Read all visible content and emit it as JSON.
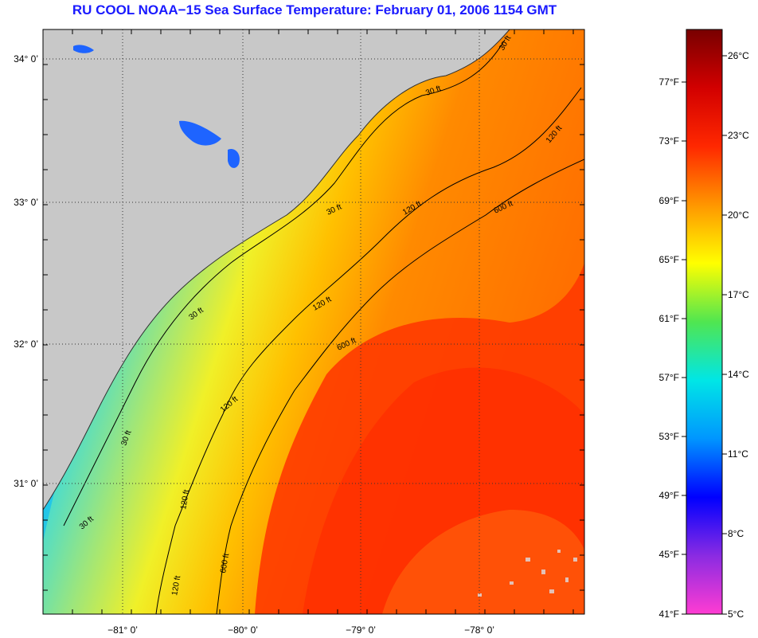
{
  "title": "RU COOL  NOAA−15  Sea Surface Temperature:  February 01, 2006 1154 GMT",
  "map": {
    "lat_ticks": [
      "34° 0’",
      "33° 0’",
      "32° 0’",
      "31° 0’"
    ],
    "lon_ticks": [
      "−81° 0’",
      "−80° 0’",
      "−79° 0’",
      "−78° 0’"
    ],
    "contour_labels": [
      "30 ft",
      "30 ft",
      "30 ft",
      "30 ft",
      "30 ft",
      "30 ft",
      "120 ft",
      "120 ft",
      "120 ft",
      "120 ft",
      "120 ft",
      "120 ft",
      "600 ft",
      "600 ft",
      "600 ft"
    ],
    "colors": {
      "land": "#c8c8c8",
      "grid": "#333333",
      "contour": "#000000"
    }
  },
  "colorbar": {
    "fahrenheit": [
      "77°F",
      "73°F",
      "69°F",
      "65°F",
      "61°F",
      "57°F",
      "53°F",
      "49°F",
      "45°F",
      "41°F"
    ],
    "celsius": [
      "26°C",
      "23°C",
      "20°C",
      "17°C",
      "14°C",
      "11°C",
      "8°C",
      "5°C"
    ],
    "colors": [
      "#ff3cd2",
      "#8a2be2",
      "#0000ff",
      "#0096ff",
      "#00e6e6",
      "#50e650",
      "#ffff00",
      "#ff9600",
      "#ff2800",
      "#d20000",
      "#780000"
    ]
  }
}
